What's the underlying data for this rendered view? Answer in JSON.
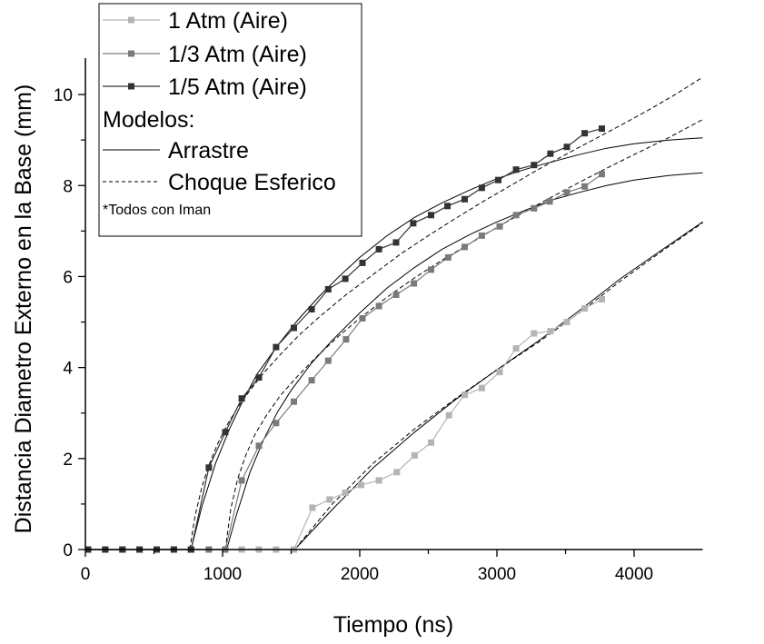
{
  "chart_data": {
    "type": "line",
    "xlabel": "Tiempo (ns)",
    "ylabel": "Distancia Diametro Externo en la Base (mm)",
    "xlim": [
      0,
      4500
    ],
    "ylim": [
      0,
      10.8
    ],
    "xticks": [
      0,
      1000,
      2000,
      3000,
      4000
    ],
    "yticks": [
      0,
      2,
      4,
      6,
      8,
      10
    ],
    "legend": {
      "placement": "top-left",
      "section_title": "Modelos:",
      "note": "*Todos con Iman"
    },
    "series": [
      {
        "name": "1 Atm (Aire)",
        "color": "#b4b4b4",
        "marker": "square",
        "x": [
          20,
          145,
          270,
          395,
          520,
          645,
          770,
          900,
          1020,
          1140,
          1265,
          1390,
          1520,
          1655,
          1780,
          1895,
          2010,
          2140,
          2270,
          2400,
          2520,
          2650,
          2765,
          2890,
          3020,
          3140,
          3270,
          3390,
          3510,
          3640,
          3765
        ],
        "y": [
          0,
          0,
          0,
          0,
          0,
          0,
          0,
          0,
          0,
          0,
          0,
          0,
          0,
          0.92,
          1.1,
          1.25,
          1.42,
          1.52,
          1.7,
          2.07,
          2.35,
          2.95,
          3.4,
          3.55,
          3.9,
          4.42,
          4.75,
          4.8,
          5.0,
          5.3,
          5.5
        ]
      },
      {
        "name": "1/3 Atm (Aire)",
        "color": "#7a7a7a",
        "marker": "square",
        "x": [
          20,
          145,
          270,
          395,
          520,
          645,
          770,
          900,
          1020,
          1140,
          1265,
          1390,
          1520,
          1650,
          1770,
          1900,
          2020,
          2140,
          2265,
          2395,
          2520,
          2645,
          2765,
          2890,
          3020,
          3140,
          3270,
          3385,
          3510,
          3640,
          3765
        ],
        "y": [
          0,
          0,
          0,
          0,
          0,
          0,
          0,
          0,
          0,
          1.52,
          2.28,
          2.78,
          3.25,
          3.72,
          4.15,
          4.62,
          5.08,
          5.35,
          5.6,
          5.85,
          6.15,
          6.42,
          6.65,
          6.9,
          7.1,
          7.35,
          7.5,
          7.65,
          7.85,
          7.98,
          8.25
        ]
      },
      {
        "name": "1/5 Atm (Aire)",
        "color": "#333333",
        "marker": "square",
        "x": [
          20,
          145,
          270,
          395,
          520,
          645,
          770,
          900,
          1020,
          1140,
          1265,
          1390,
          1520,
          1650,
          1770,
          1895,
          2020,
          2140,
          2265,
          2390,
          2520,
          2640,
          2765,
          2890,
          3010,
          3140,
          3270,
          3390,
          3510,
          3640,
          3765
        ],
        "y": [
          0,
          0,
          0,
          0,
          0,
          0,
          0,
          1.8,
          2.58,
          3.32,
          3.78,
          4.45,
          4.87,
          5.28,
          5.72,
          5.95,
          6.3,
          6.6,
          6.75,
          7.17,
          7.35,
          7.55,
          7.7,
          7.95,
          8.12,
          8.35,
          8.45,
          8.7,
          8.85,
          9.15,
          9.25
        ]
      }
    ],
    "models": [
      {
        "name": "Arrastre",
        "style": "solid",
        "curves": [
          {
            "x": [
              1525,
              1800,
              2100,
              2400,
              2700,
              3000,
              3300,
              3600,
              3900,
              4200,
              4500
            ],
            "y": [
              0,
              0.88,
              1.8,
              2.58,
              3.3,
              3.95,
              4.58,
              5.25,
              5.95,
              6.58,
              7.2
            ]
          },
          {
            "x": [
              1030,
              1100,
              1200,
              1300,
              1400,
              1500,
              1650,
              1800,
              2000,
              2200,
              2400,
              2600,
              2800,
              3000,
              3200,
              3400,
              3600,
              3800,
              4000,
              4250,
              4500
            ],
            "y": [
              0,
              0.75,
              1.7,
              2.42,
              3.02,
              3.5,
              4.1,
              4.6,
              5.2,
              5.75,
              6.2,
              6.6,
              6.92,
              7.2,
              7.45,
              7.68,
              7.85,
              8.0,
              8.12,
              8.22,
              8.28
            ]
          },
          {
            "x": [
              770,
              850,
              950,
              1050,
              1150,
              1250,
              1400,
              1550,
              1700,
              1850,
              2000,
              2200,
              2400,
              2600,
              2800,
              3000,
              3200,
              3400,
              3600,
              3800,
              4000,
              4250,
              4500
            ],
            "y": [
              0,
              0.95,
              1.9,
              2.65,
              3.28,
              3.85,
              4.48,
              5.05,
              5.55,
              6.0,
              6.42,
              6.9,
              7.3,
              7.62,
              7.9,
              8.15,
              8.35,
              8.52,
              8.68,
              8.82,
              8.92,
              9.0,
              9.05
            ]
          }
        ]
      },
      {
        "name": "Choque Esferico",
        "style": "dashed",
        "curves": [
          {
            "x": [
              1525,
              1800,
              2100,
              2400,
              2700,
              3000,
              3300,
              3600,
              3900,
              4200,
              4500
            ],
            "y": [
              0,
              1.0,
              1.9,
              2.65,
              3.32,
              3.95,
              4.55,
              5.2,
              5.9,
              6.55,
              7.18
            ]
          },
          {
            "x": [
              1020,
              1060,
              1110,
              1170,
              1240,
              1320,
              1420,
              1550,
              1700,
              1850,
              2000,
              2200,
              2400,
              2600,
              2800,
              3000,
              3200,
              3400,
              3600,
              3800,
              4000,
              4250,
              4500
            ],
            "y": [
              0,
              0.9,
              1.55,
              2.08,
              2.55,
              2.95,
              3.38,
              3.82,
              4.28,
              4.7,
              5.08,
              5.55,
              5.97,
              6.36,
              6.72,
              7.08,
              7.42,
              7.75,
              8.07,
              8.38,
              8.68,
              9.05,
              9.45
            ]
          },
          {
            "x": [
              760,
              800,
              850,
              900,
              960,
              1030,
              1110,
              1200,
              1300,
              1420,
              1560,
              1720,
              1900,
              2100,
              2300,
              2500,
              2700,
              2900,
              3100,
              3300,
              3500,
              3700,
              3900,
              4100,
              4300,
              4500
            ],
            "y": [
              0,
              0.75,
              1.38,
              1.85,
              2.3,
              2.72,
              3.12,
              3.5,
              3.88,
              4.28,
              4.72,
              5.15,
              5.6,
              6.05,
              6.5,
              6.9,
              7.28,
              7.65,
              8.0,
              8.35,
              8.68,
              9.0,
              9.32,
              9.65,
              10.0,
              10.38
            ]
          }
        ]
      }
    ]
  }
}
